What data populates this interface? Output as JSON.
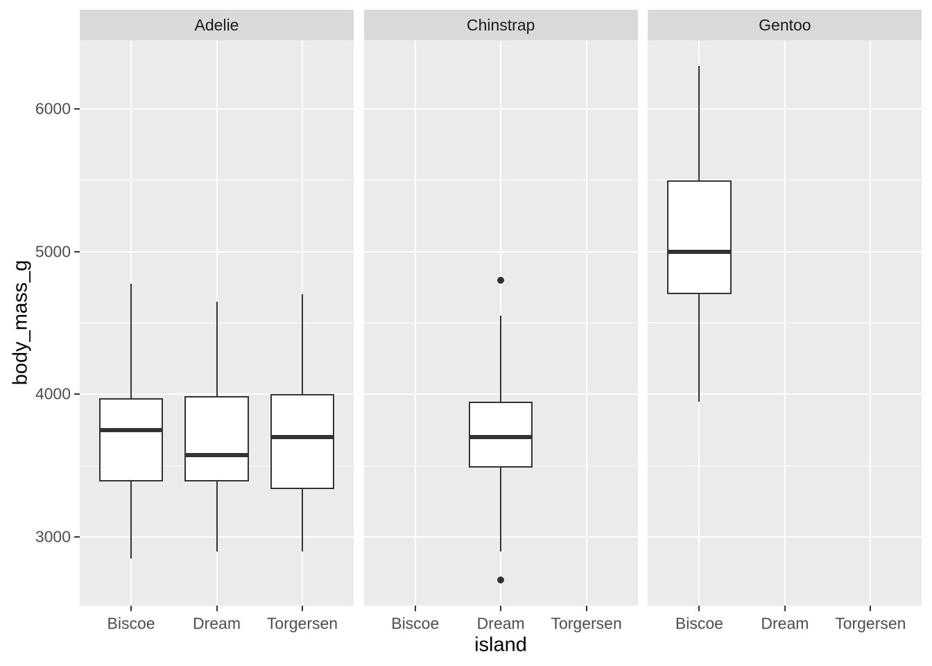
{
  "chart_data": {
    "type": "boxplot",
    "title": "",
    "xlabel": "island",
    "ylabel": "body_mass_g",
    "categories": [
      "Biscoe",
      "Dream",
      "Torgersen"
    ],
    "ylim": [
      2520,
      6480
    ],
    "yticks": [
      3000,
      4000,
      5000,
      6000
    ],
    "yticks_minor": [
      3500,
      4500,
      5500
    ],
    "grid": "white major+minor horizontal lines, white major vertical lines at categories",
    "legend": "none",
    "facets": [
      {
        "label": "Adelie",
        "boxes": [
          {
            "island": "Biscoe",
            "lower_whisker": 2850,
            "q1": 3387.5,
            "median": 3750,
            "q3": 3975,
            "upper_whisker": 4775,
            "outliers": []
          },
          {
            "island": "Dream",
            "lower_whisker": 2900,
            "q1": 3387.5,
            "median": 3575,
            "q3": 3987.5,
            "upper_whisker": 4650,
            "outliers": []
          },
          {
            "island": "Torgersen",
            "lower_whisker": 2900,
            "q1": 3337.5,
            "median": 3700,
            "q3": 4000,
            "upper_whisker": 4700,
            "outliers": []
          }
        ]
      },
      {
        "label": "Chinstrap",
        "boxes": [
          {
            "island": "Dream",
            "lower_whisker": 2900,
            "q1": 3487.5,
            "median": 3700,
            "q3": 3950,
            "upper_whisker": 4550,
            "outliers": [
              2700,
              4800
            ]
          }
        ]
      },
      {
        "label": "Gentoo",
        "boxes": [
          {
            "island": "Biscoe",
            "lower_whisker": 3950,
            "q1": 4700,
            "median": 5000,
            "q3": 5500,
            "upper_whisker": 6300,
            "outliers": []
          }
        ]
      }
    ],
    "colors": {
      "panel_bg": "#EBEBEB",
      "strip_bg": "#D9D9D9",
      "grid": "#FFFFFF",
      "box_outline": "#333333",
      "box_fill": "#FFFFFF",
      "axis_text": "#4D4D4D",
      "axis_title": "#000000",
      "strip_text": "#1A1A1A"
    }
  }
}
